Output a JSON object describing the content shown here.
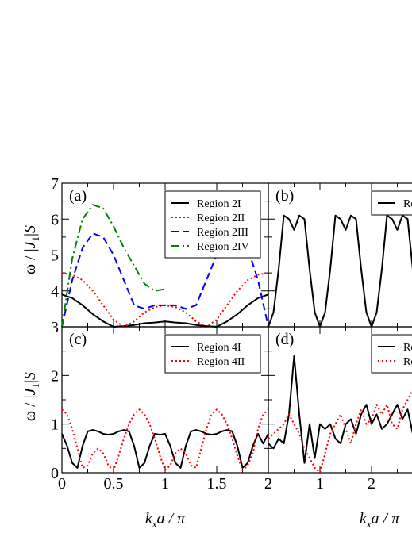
{
  "figure": {
    "ylabel_omega": "ω / |",
    "ylabel_J": "J",
    "ylabel_sub": "1",
    "ylabel_tail": "|",
    "ylabel_S": "S",
    "xlabel_k": "k",
    "xlabel_sub": "x",
    "xlabel_tail": "a / π"
  },
  "chart_data": [
    {
      "panel": "(a)",
      "type": "line",
      "xlim": [
        0,
        2
      ],
      "ylim": [
        3,
        7
      ],
      "x_ticks": [
        "0",
        "0.5",
        "1",
        "1.5",
        "2"
      ],
      "y_ticks": [
        "3",
        "4",
        "5",
        "6",
        "7"
      ],
      "legend_position": "top-right",
      "series": [
        {
          "name": "Region 2I",
          "color": "#000000",
          "dash": "solid",
          "x": [
            0,
            0.1,
            0.2,
            0.3,
            0.4,
            0.5,
            0.6,
            0.7,
            0.8,
            0.9,
            1.0,
            1.1,
            1.2,
            1.3,
            1.4,
            1.5,
            1.6,
            1.7,
            1.8,
            1.9,
            2.0
          ],
          "y": [
            3.9,
            3.8,
            3.6,
            3.35,
            3.15,
            3.0,
            3.02,
            3.05,
            3.1,
            3.12,
            3.15,
            3.12,
            3.1,
            3.05,
            3.02,
            3.0,
            3.15,
            3.35,
            3.6,
            3.8,
            3.9
          ]
        },
        {
          "name": "Region 2II",
          "color": "#ff0000",
          "dash": "dotted",
          "x": [
            0,
            0.1,
            0.2,
            0.3,
            0.4,
            0.5,
            0.6,
            0.7,
            0.8,
            0.9,
            1.0,
            1.1,
            1.2,
            1.3,
            1.4,
            1.5,
            1.6,
            1.7,
            1.8,
            1.9,
            2.0
          ],
          "y": [
            4.5,
            4.45,
            4.3,
            4.0,
            3.6,
            3.2,
            3.0,
            3.15,
            3.4,
            3.55,
            3.6,
            3.55,
            3.4,
            3.15,
            3.0,
            3.2,
            3.6,
            4.0,
            4.3,
            4.45,
            4.5
          ]
        },
        {
          "name": "Region 2III",
          "color": "#0000ff",
          "dash": "dashed",
          "x": [
            0,
            0.1,
            0.2,
            0.3,
            0.4,
            0.5,
            0.6,
            0.7,
            0.8,
            0.9,
            1.0,
            1.1,
            1.2,
            1.3,
            1.4,
            1.5,
            1.6,
            1.7,
            1.8,
            1.9,
            2.0
          ],
          "y": [
            3.0,
            4.3,
            5.2,
            5.6,
            5.5,
            5.0,
            4.3,
            3.6,
            3.5,
            3.6,
            3.6,
            3.6,
            3.5,
            3.6,
            4.3,
            5.0,
            5.5,
            5.6,
            5.2,
            4.3,
            3.0
          ]
        },
        {
          "name": "Region 2IV",
          "color": "#008000",
          "dash": "dashdot",
          "x": [
            0,
            0.1,
            0.2,
            0.3,
            0.4,
            0.5,
            0.6,
            0.7,
            0.8,
            0.9,
            1.0
          ],
          "y": [
            3.0,
            4.9,
            6.0,
            6.4,
            6.3,
            5.8,
            5.2,
            4.7,
            4.2,
            4.0,
            4.05
          ]
        }
      ]
    },
    {
      "panel": "(b)",
      "type": "line",
      "xlim": [
        0,
        2
      ],
      "ylim": [
        3,
        7
      ],
      "legend_position": "top-right",
      "series": [
        {
          "name": "Re",
          "color": "#000000",
          "dash": "solid",
          "x": [
            0,
            0.05,
            0.1,
            0.15,
            0.2,
            0.25,
            0.3,
            0.35,
            0.4,
            0.45,
            0.5,
            0.55,
            0.6,
            0.65,
            0.7,
            0.75,
            0.8,
            0.85,
            0.9,
            0.95,
            1.0,
            1.05,
            1.1,
            1.15,
            1.2,
            1.25,
            1.3,
            1.35,
            1.4,
            1.45,
            1.5,
            1.55,
            1.6,
            1.65,
            1.7,
            1.75,
            1.8,
            1.85,
            1.9,
            1.95,
            2.0
          ],
          "y": [
            3.0,
            3.4,
            4.6,
            6.1,
            6.0,
            5.7,
            6.1,
            6.0,
            4.6,
            3.4,
            3.0,
            3.4,
            4.6,
            6.1,
            6.0,
            5.7,
            6.1,
            6.0,
            4.6,
            3.4,
            3.0,
            3.4,
            4.6,
            6.1,
            6.0,
            5.7,
            6.1,
            6.0,
            4.6,
            3.4,
            3.0,
            3.4,
            4.6,
            6.1,
            6.0,
            5.7,
            6.1,
            6.0,
            4.6,
            3.4,
            3.0
          ]
        }
      ]
    },
    {
      "panel": "(c)",
      "type": "line",
      "xlim": [
        0,
        2
      ],
      "ylim": [
        0,
        3
      ],
      "x_ticks": [
        "0",
        "0.5",
        "1",
        "1.5",
        "2"
      ],
      "y_ticks": [
        "0",
        "1",
        "2"
      ],
      "legend_position": "top-right",
      "series": [
        {
          "name": "Region 4I",
          "color": "#000000",
          "dash": "solid",
          "x": [
            0,
            0.05,
            0.1,
            0.15,
            0.2,
            0.25,
            0.3,
            0.35,
            0.4,
            0.45,
            0.5,
            0.55,
            0.6,
            0.65,
            0.7,
            0.75,
            0.8,
            0.85,
            0.9,
            0.95,
            1.0,
            1.05,
            1.1,
            1.15,
            1.2,
            1.25,
            1.3,
            1.35,
            1.4,
            1.45,
            1.5,
            1.55,
            1.6,
            1.65,
            1.7,
            1.75,
            1.8,
            1.85,
            1.9,
            1.95,
            2.0
          ],
          "y": [
            0.8,
            0.55,
            0.2,
            0.1,
            0.55,
            0.85,
            0.88,
            0.85,
            0.8,
            0.78,
            0.8,
            0.85,
            0.88,
            0.85,
            0.55,
            0.1,
            0.2,
            0.55,
            0.8,
            0.78,
            0.8,
            0.55,
            0.2,
            0.1,
            0.55,
            0.85,
            0.88,
            0.85,
            0.8,
            0.78,
            0.8,
            0.85,
            0.88,
            0.85,
            0.55,
            0.1,
            0.2,
            0.55,
            0.8,
            0.6,
            0.8
          ]
        },
        {
          "name": "Region 4II",
          "color": "#ff0000",
          "dash": "dotted",
          "x": [
            0,
            0.05,
            0.1,
            0.15,
            0.2,
            0.25,
            0.3,
            0.35,
            0.4,
            0.45,
            0.5,
            0.55,
            0.6,
            0.65,
            0.7,
            0.75,
            0.8,
            0.85,
            0.9,
            0.95,
            1.0,
            1.05,
            1.1,
            1.15,
            1.2,
            1.25,
            1.3,
            1.35,
            1.4,
            1.45,
            1.5,
            1.55,
            1.6,
            1.65,
            1.7,
            1.75,
            1.8,
            1.85,
            1.9,
            1.95,
            2.0
          ],
          "y": [
            1.3,
            1.2,
            0.9,
            0.5,
            0.1,
            0.15,
            0.4,
            0.5,
            0.4,
            0.15,
            0.05,
            0.35,
            0.7,
            1.0,
            1.2,
            1.3,
            1.2,
            1.0,
            0.7,
            0.35,
            0.05,
            0.15,
            0.4,
            0.5,
            0.4,
            0.15,
            0.1,
            0.5,
            0.9,
            1.2,
            1.3,
            1.2,
            1.0,
            0.7,
            0.35,
            0.05,
            0.15,
            0.4,
            0.9,
            1.2,
            1.3
          ]
        }
      ]
    },
    {
      "panel": "(d)",
      "type": "line",
      "xlim": [
        0,
        2
      ],
      "ylim": [
        0,
        3
      ],
      "x_ticks": [
        "2",
        "1",
        "2"
      ],
      "legend_position": "top-right",
      "legend_labels": [
        "Re",
        "Re"
      ],
      "series": [
        {
          "name": "Re",
          "color": "#000000",
          "dash": "solid",
          "x": [
            0,
            0.05,
            0.1,
            0.15,
            0.2,
            0.25,
            0.3,
            0.35,
            0.4,
            0.45,
            0.5,
            0.55,
            0.6,
            0.65,
            0.7,
            0.75,
            0.8,
            0.85,
            0.9,
            0.95,
            1.0,
            1.05,
            1.1,
            1.15,
            1.2,
            1.25,
            1.3,
            1.35,
            1.4,
            1.45,
            1.5,
            1.55,
            1.6,
            1.65,
            1.7,
            1.75,
            1.8,
            1.85,
            1.9,
            1.95,
            2.0
          ],
          "y": [
            0.6,
            0.5,
            0.7,
            0.6,
            1.2,
            2.4,
            1.2,
            0.2,
            1.0,
            0.3,
            1.0,
            0.9,
            1.0,
            0.7,
            0.6,
            1.0,
            1.1,
            0.8,
            1.2,
            1.4,
            1.0,
            1.2,
            0.9,
            1.0,
            1.2,
            1.4,
            1.1,
            1.3,
            0.8,
            0.1,
            0.0,
            0.4,
            0.9,
            1.3,
            1.0,
            1.5,
            0.9,
            1.2,
            1.5,
            1.4,
            1.2
          ]
        },
        {
          "name": "Re",
          "color": "#ff0000",
          "dash": "dotted",
          "x": [
            0,
            0.05,
            0.1,
            0.15,
            0.2,
            0.25,
            0.3,
            0.35,
            0.4,
            0.45,
            0.5,
            0.55,
            0.6,
            0.65,
            0.7,
            0.75,
            0.8,
            0.85,
            0.9,
            0.95,
            1.0,
            1.05,
            1.1,
            1.15,
            1.2,
            1.25,
            1.3,
            1.35,
            1.4,
            1.45,
            1.5,
            1.55,
            1.6,
            1.65,
            1.7,
            1.75,
            1.8,
            1.85,
            1.9,
            1.95,
            2.0
          ],
          "y": [
            0.7,
            0.8,
            0.9,
            1.0,
            1.2,
            1.0,
            0.8,
            0.5,
            0.3,
            0.1,
            0.0,
            0.4,
            0.8,
            1.0,
            1.2,
            0.9,
            0.6,
            1.0,
            1.3,
            1.0,
            1.1,
            1.4,
            1.2,
            1.4,
            1.0,
            0.9,
            1.3,
            1.5,
            1.7,
            2.2,
            1.9,
            1.3,
            0.8,
            0.3,
            0.6,
            1.0,
            1.2,
            0.9,
            0.8,
            1.0,
            1.0
          ]
        }
      ]
    }
  ]
}
